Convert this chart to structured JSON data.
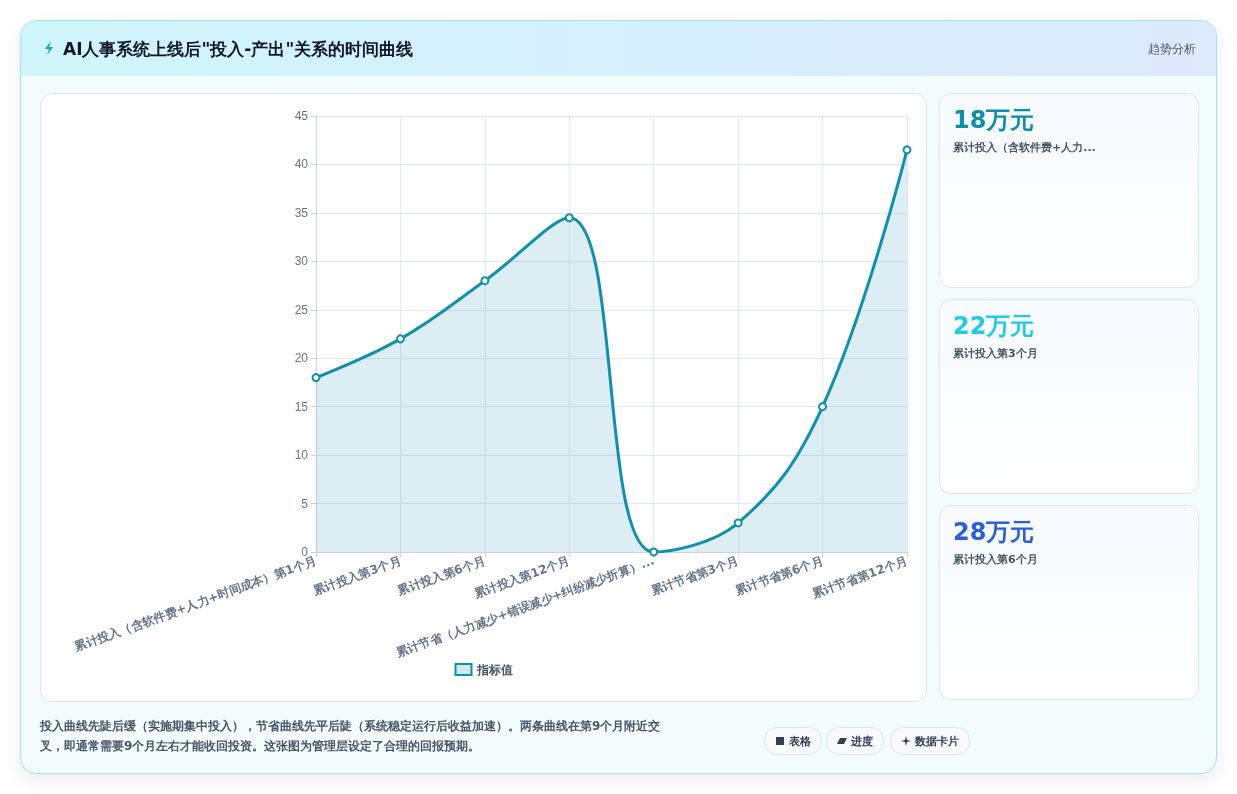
{
  "chart_data": {
    "type": "area",
    "title": "AI人事系统上线后\"投入-产出\"关系的时间曲线",
    "categories": [
      "累计投入（含软件费+人力+时间成本）第1个月",
      "累计投入第3个月",
      "累计投入第6个月",
      "累计投入第12个月",
      "累计节省（人力减少+错误减少+纠纷减少折算）...",
      "累计节省第3个月",
      "累计节省第6个月",
      "累计节省第12个月"
    ],
    "series": [
      {
        "name": "指标值",
        "color": "#1190ad",
        "values": [
          18,
          22,
          28,
          34.5,
          0,
          3,
          15,
          41.5
        ]
      }
    ],
    "ylim": [
      0,
      45
    ],
    "yticks": [
      0,
      5,
      10,
      15,
      20,
      25,
      30,
      35,
      40,
      45
    ],
    "grid": true,
    "legend": "bottom",
    "marker": "circle",
    "line_style": "solid",
    "annotations": [
      "趋势分析",
      "18万元",
      "累计投入（含软件费+人力...",
      "22万元",
      "累计投入第3个月",
      "28万元",
      "累计投入第6个月",
      "投入曲线先陡后缓（实施期集中投入），节省曲线先平后陡（系统稳定运行后收益加速）。两条曲线在第9个月附近交叉，即通常需要9个月左右才能收回投资。这张图为管理层设定了合理的回报预期。",
      "表格",
      "进度",
      "数据卡片"
    ]
  }
}
